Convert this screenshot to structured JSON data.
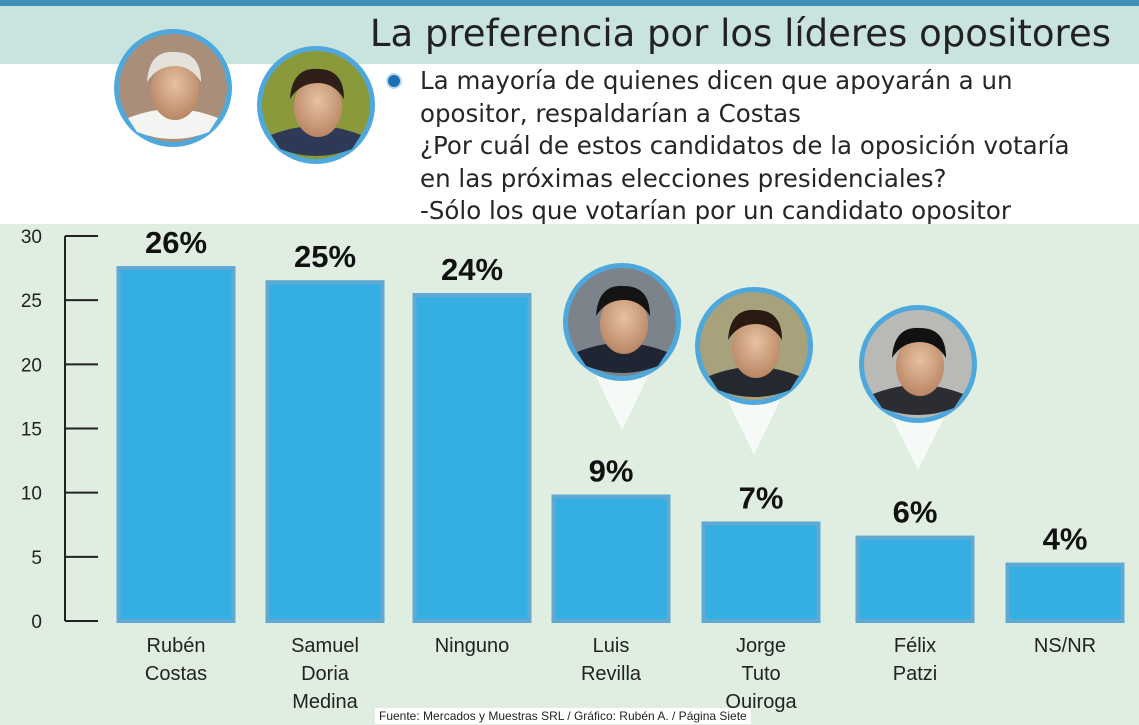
{
  "chart_data": {
    "type": "bar",
    "title": "La preferencia por los líderes opositores",
    "description_lines": [
      "La mayoría de quienes dicen que apoyarán a un",
      "opositor, respaldarían a Costas",
      "¿Por cuál de estos candidatos de la oposición votaría",
      "en las próximas elecciones presidenciales?",
      "-Sólo los que votarían por un candidato opositor"
    ],
    "categories": [
      [
        "Rubén",
        "Costas"
      ],
      [
        "Samuel",
        "Doria",
        "Medina"
      ],
      [
        "Ninguno"
      ],
      [
        "Luis",
        "Revilla"
      ],
      [
        "Jorge",
        "Tuto",
        "Quiroga"
      ],
      [
        "Félix",
        "Patzi"
      ],
      [
        "NS/NR"
      ]
    ],
    "values": [
      26,
      25,
      24,
      9,
      7,
      6,
      4
    ],
    "bar_values": [
      27.5,
      26.4,
      25.4,
      9.7,
      7.6,
      6.5,
      4.4
    ],
    "value_labels": [
      "26%",
      "25%",
      "24%",
      "9%",
      "7%",
      "6%",
      "4%"
    ],
    "yticks": [
      0,
      5,
      10,
      15,
      20,
      25,
      30
    ],
    "ylim": [
      0,
      30
    ],
    "xlabel": "",
    "ylabel": "",
    "source": "Fuente: Mercados y Muestras SRL / Gráfico: Rubén A. / Página Siete",
    "colors": {
      "bar": "#35aee2",
      "bar_edge": "#5fa9d3",
      "axis": "#222222",
      "photo_ring": "#4fa8dc"
    }
  }
}
